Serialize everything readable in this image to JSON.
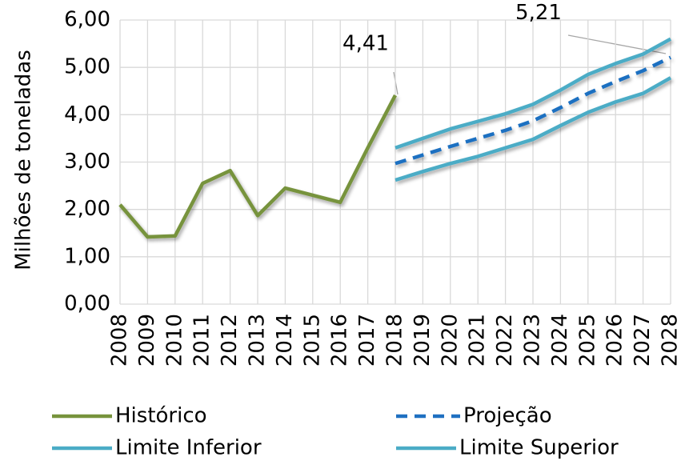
{
  "chart_data": {
    "type": "line",
    "y_label": "Milhões de toneladas",
    "categories": [
      "2008",
      "2009",
      "2010",
      "2011",
      "2012",
      "2013",
      "2014",
      "2015",
      "2016",
      "2017",
      "2018",
      "2019",
      "2020",
      "2021",
      "2022",
      "2023",
      "2024",
      "2025",
      "2026",
      "2027",
      "2028"
    ],
    "series": [
      {
        "name": "Histórico",
        "color": "#77933c",
        "dashed": false,
        "values": [
          2.1,
          1.42,
          1.44,
          2.55,
          2.82,
          1.87,
          2.45,
          2.3,
          2.15,
          3.3,
          4.41,
          null,
          null,
          null,
          null,
          null,
          null,
          null,
          null,
          null,
          null
        ],
        "value_labels": [
          null,
          null,
          null,
          null,
          null,
          null,
          null,
          null,
          null,
          null,
          "4,41",
          null,
          null,
          null,
          null,
          null,
          null,
          null,
          null,
          null,
          null
        ]
      },
      {
        "name": "Projeção",
        "color": "#1f70c1",
        "dashed": true,
        "values": [
          null,
          null,
          null,
          null,
          null,
          null,
          null,
          null,
          null,
          null,
          2.97,
          3.15,
          3.33,
          3.5,
          3.67,
          3.87,
          4.15,
          4.45,
          4.7,
          4.93,
          5.21
        ],
        "value_labels": [
          null,
          null,
          null,
          null,
          null,
          null,
          null,
          null,
          null,
          null,
          null,
          null,
          null,
          null,
          null,
          null,
          null,
          null,
          null,
          null,
          "5,21"
        ]
      },
      {
        "name": "Limite Inferior",
        "color": "#4bacc6",
        "dashed": false,
        "values": [
          null,
          null,
          null,
          null,
          null,
          null,
          null,
          null,
          null,
          null,
          2.62,
          2.8,
          2.97,
          3.12,
          3.3,
          3.48,
          3.77,
          4.05,
          4.27,
          4.45,
          4.78
        ]
      },
      {
        "name": "Limite Superior",
        "color": "#4bacc6",
        "dashed": false,
        "values": [
          null,
          null,
          null,
          null,
          null,
          null,
          null,
          null,
          null,
          null,
          3.3,
          3.5,
          3.7,
          3.86,
          4.02,
          4.22,
          4.52,
          4.85,
          5.08,
          5.28,
          5.6
        ]
      }
    ],
    "ylim": [
      0,
      6
    ],
    "yticks": [
      {
        "value": 0,
        "label": "0,00"
      },
      {
        "value": 1,
        "label": "1,00"
      },
      {
        "value": 2,
        "label": "2,00"
      },
      {
        "value": 3,
        "label": "3,00"
      },
      {
        "value": 4,
        "label": "4,00"
      },
      {
        "value": 5,
        "label": "5,00"
      },
      {
        "value": 6,
        "label": "6,00"
      }
    ],
    "grid": true,
    "legend": "bottom"
  }
}
